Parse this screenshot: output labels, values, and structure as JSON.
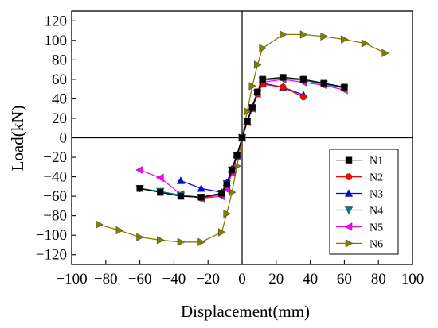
{
  "chart_data": {
    "type": "line",
    "xlabel": "Displacement(mm)",
    "ylabel": "Load(kN)",
    "xlim": [
      -100,
      100
    ],
    "ylim": [
      -130,
      130
    ],
    "xticks": [
      -100,
      -80,
      -60,
      -40,
      -20,
      0,
      20,
      40,
      60,
      80,
      100
    ],
    "yticks": [
      -120,
      -100,
      -80,
      -60,
      -40,
      -20,
      0,
      20,
      40,
      60,
      80,
      100,
      120
    ],
    "grid": false,
    "legend_position": "bottom-right",
    "series": [
      {
        "name": "N1",
        "color": "#000000",
        "marker": "square",
        "points": [
          [
            -60,
            -52
          ],
          [
            -48,
            -56
          ],
          [
            -36,
            -60
          ],
          [
            -24,
            -61
          ],
          [
            -12,
            -57
          ],
          [
            -9,
            -48
          ],
          [
            -6,
            -33
          ],
          [
            -3,
            -18
          ],
          [
            0,
            0
          ],
          [
            3,
            17
          ],
          [
            6,
            31
          ],
          [
            9,
            47
          ],
          [
            12,
            60
          ],
          [
            24,
            62
          ],
          [
            36,
            60
          ],
          [
            48,
            56
          ],
          [
            60,
            52
          ]
        ]
      },
      {
        "name": "N2",
        "color": "#ff0000",
        "marker": "circle",
        "points": [
          [
            -24,
            -62
          ],
          [
            -12,
            -58
          ],
          [
            -9,
            -48
          ],
          [
            -6,
            -34
          ],
          [
            -3,
            -19
          ],
          [
            0,
            0
          ],
          [
            3,
            16
          ],
          [
            6,
            30
          ],
          [
            9,
            45
          ],
          [
            12,
            55
          ],
          [
            24,
            52
          ],
          [
            36,
            42
          ]
        ]
      },
      {
        "name": "N3",
        "color": "#0000ff",
        "marker": "triangle-up",
        "points": [
          [
            -36,
            -44
          ],
          [
            -24,
            -52
          ],
          [
            -12,
            -56
          ],
          [
            -9,
            -46
          ],
          [
            -6,
            -32
          ],
          [
            -3,
            -17
          ],
          [
            0,
            0
          ],
          [
            3,
            17
          ],
          [
            6,
            32
          ],
          [
            9,
            47
          ],
          [
            12,
            56
          ],
          [
            24,
            52
          ],
          [
            36,
            44
          ]
        ]
      },
      {
        "name": "N4",
        "color": "#008080",
        "marker": "triangle-down",
        "points": [
          [
            -60,
            -52
          ],
          [
            -48,
            -55
          ],
          [
            -36,
            -59
          ],
          [
            -24,
            -61
          ],
          [
            -12,
            -57
          ],
          [
            -9,
            -47
          ],
          [
            -6,
            -33
          ],
          [
            -3,
            -18
          ],
          [
            0,
            0
          ],
          [
            3,
            17
          ],
          [
            6,
            31
          ],
          [
            9,
            46
          ],
          [
            12,
            59
          ],
          [
            24,
            61
          ],
          [
            36,
            59
          ],
          [
            48,
            55
          ],
          [
            60,
            51
          ]
        ]
      },
      {
        "name": "N5",
        "color": "#ff00ff",
        "marker": "triangle-left",
        "points": [
          [
            -60,
            -33
          ],
          [
            -48,
            -41
          ],
          [
            -36,
            -58
          ],
          [
            -24,
            -62
          ],
          [
            -12,
            -60
          ],
          [
            -9,
            -53
          ],
          [
            -6,
            -36
          ],
          [
            -3,
            -19
          ],
          [
            0,
            0
          ],
          [
            3,
            16
          ],
          [
            6,
            30
          ],
          [
            9,
            45
          ],
          [
            12,
            57
          ],
          [
            24,
            60
          ],
          [
            36,
            57
          ],
          [
            48,
            54
          ],
          [
            60,
            49
          ]
        ]
      },
      {
        "name": "N6",
        "color": "#808000",
        "marker": "triangle-right",
        "points": [
          [
            -84,
            -89
          ],
          [
            -72,
            -95
          ],
          [
            -60,
            -102
          ],
          [
            -48,
            -105
          ],
          [
            -36,
            -107
          ],
          [
            -24,
            -107
          ],
          [
            -12,
            -97
          ],
          [
            -9,
            -78
          ],
          [
            -6,
            -56
          ],
          [
            -3,
            -29
          ],
          [
            0,
            0
          ],
          [
            3,
            27
          ],
          [
            6,
            53
          ],
          [
            9,
            75
          ],
          [
            12,
            92
          ],
          [
            24,
            106
          ],
          [
            36,
            106
          ],
          [
            48,
            104
          ],
          [
            60,
            101
          ],
          [
            72,
            97
          ],
          [
            84,
            87
          ]
        ]
      }
    ]
  }
}
